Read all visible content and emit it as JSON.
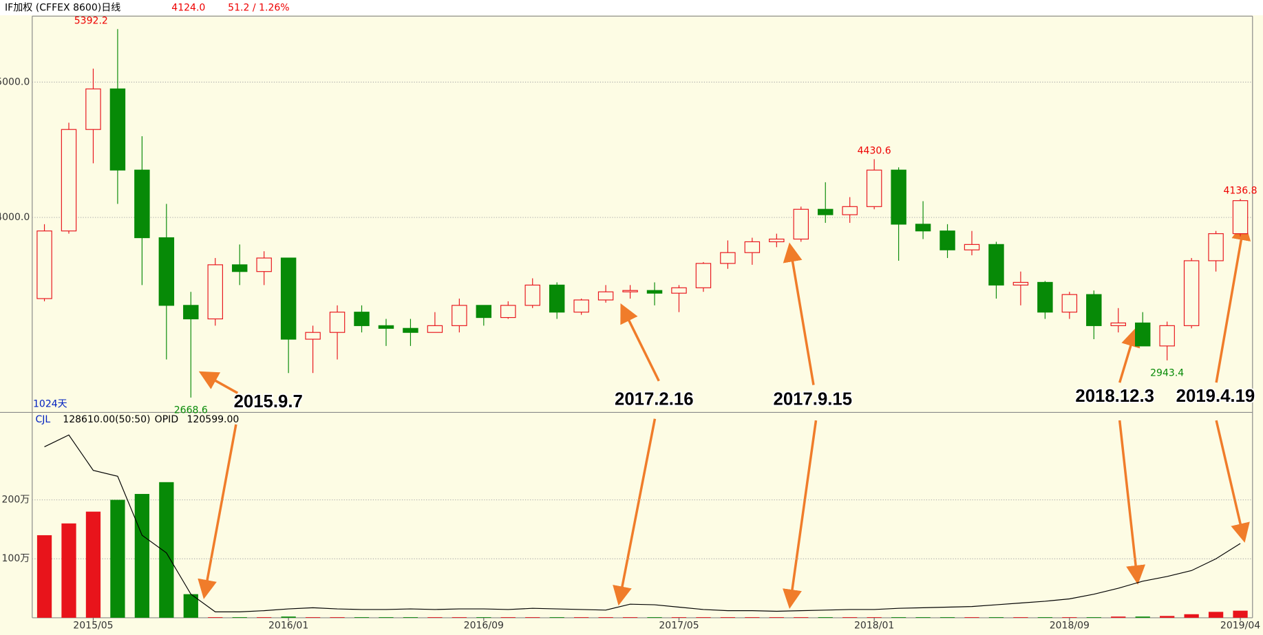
{
  "chart_data": [
    {
      "type": "candlestick",
      "title": "IF加权  (CFFEX 8600)日线",
      "last": "4124.0",
      "change": "51.2 / 1.26%",
      "span": "1024天",
      "up_color": "#e8141b",
      "down_color": "#078a07",
      "open": [
        3400,
        3900,
        4650,
        4950,
        4350,
        3850,
        3350,
        3250,
        3650,
        3600,
        3700,
        3100,
        3150,
        3300,
        3200,
        3180,
        3150,
        3200,
        3350,
        3260,
        3350,
        3500,
        3300,
        3390,
        3450,
        3460,
        3440,
        3480,
        3660,
        3740,
        3820,
        3840,
        4060,
        4020,
        4080,
        4350,
        3950,
        3900,
        3760,
        3800,
        3500,
        3520,
        3300,
        3430,
        3200,
        3220,
        3050,
        3200,
        3680,
        3880
      ],
      "high": [
        3950,
        4700,
        5100,
        5392.2,
        4600,
        4100,
        3450,
        3700,
        3800,
        3750,
        3700,
        3200,
        3350,
        3350,
        3250,
        3250,
        3300,
        3400,
        3350,
        3380,
        3550,
        3520,
        3400,
        3500,
        3500,
        3520,
        3500,
        3670,
        3830,
        3850,
        3880,
        4080,
        4260,
        4150,
        4430.6,
        4370,
        4120,
        3950,
        3900,
        3820,
        3600,
        3530,
        3450,
        3460,
        3330,
        3300,
        3230,
        3700,
        3900,
        4136.8
      ],
      "low": [
        3380,
        3880,
        4400,
        4100,
        3500,
        2950,
        2668.6,
        3200,
        3500,
        3500,
        2850,
        2850,
        2950,
        3150,
        3050,
        3050,
        3150,
        3150,
        3200,
        3250,
        3330,
        3250,
        3280,
        3370,
        3400,
        3350,
        3300,
        3450,
        3620,
        3650,
        3780,
        3820,
        3960,
        3960,
        4060,
        3680,
        3840,
        3700,
        3720,
        3400,
        3350,
        3250,
        3250,
        3100,
        3150,
        3050,
        2943.4,
        3180,
        3600,
        3860
      ],
      "close": [
        3900,
        4650,
        4950,
        4350,
        3850,
        3350,
        3250,
        3650,
        3600,
        3700,
        3100,
        3150,
        3300,
        3200,
        3180,
        3150,
        3200,
        3350,
        3260,
        3350,
        3500,
        3300,
        3390,
        3450,
        3460,
        3440,
        3480,
        3660,
        3740,
        3820,
        3840,
        4060,
        4020,
        4080,
        4350,
        3950,
        3900,
        3760,
        3800,
        3500,
        3520,
        3300,
        3430,
        3200,
        3220,
        3050,
        3200,
        3680,
        3880,
        4124.0
      ],
      "ylim": [
        2571,
        5488
      ],
      "yticks": [
        {
          "value": 4000,
          "label": "4000.0"
        },
        {
          "value": 5000,
          "label": "5000.0"
        }
      ],
      "grid": true,
      "annotations": [
        "2015.9.7",
        "2017.2.16",
        "2017.9.15",
        "2018.12.3",
        "2019.4.19"
      ]
    },
    {
      "type": "bar",
      "title": "CJL",
      "categories": [
        null,
        null,
        "2015/05",
        null,
        null,
        null,
        null,
        null,
        null,
        null,
        "2016/01",
        null,
        null,
        null,
        null,
        null,
        null,
        null,
        "2016/09",
        null,
        null,
        null,
        null,
        null,
        null,
        null,
        "2017/05",
        null,
        null,
        null,
        null,
        null,
        null,
        null,
        "2018/01",
        null,
        null,
        null,
        null,
        null,
        null,
        null,
        "2018/09",
        null,
        null,
        null,
        null,
        null,
        null,
        "2019/04"
      ],
      "series": [
        {
          "name": "CJL",
          "legend_value": "128610.00(50:50)",
          "values": [
            140,
            160,
            180,
            200,
            210,
            230,
            40,
            1,
            1,
            1,
            2,
            1,
            1,
            1,
            1,
            1,
            1,
            1,
            1,
            1,
            1,
            1,
            1,
            1,
            1,
            1,
            1,
            1,
            1,
            1,
            1,
            1,
            1,
            1,
            1,
            1,
            1,
            1,
            1,
            1,
            1,
            1,
            1,
            1,
            2,
            2,
            3,
            6,
            10,
            12
          ]
        },
        {
          "name": "OPID",
          "legend_value": "120599.00",
          "color": "#000000",
          "values": [
            290,
            310,
            250,
            240,
            140,
            110,
            40,
            10,
            10,
            12,
            15,
            17,
            15,
            14,
            14,
            15,
            14,
            15,
            15,
            14,
            16,
            15,
            14,
            13,
            23,
            22,
            18,
            14,
            12,
            12,
            11,
            12,
            13,
            14,
            14,
            16,
            17,
            18,
            19,
            22,
            25,
            28,
            32,
            40,
            50,
            62,
            70,
            80,
            100,
            126
          ]
        }
      ],
      "ylim": [
        0,
        347
      ],
      "yticks": [
        {
          "value": 100,
          "label": "100万"
        },
        {
          "value": 200,
          "label": "200万"
        }
      ],
      "grid": true
    }
  ]
}
